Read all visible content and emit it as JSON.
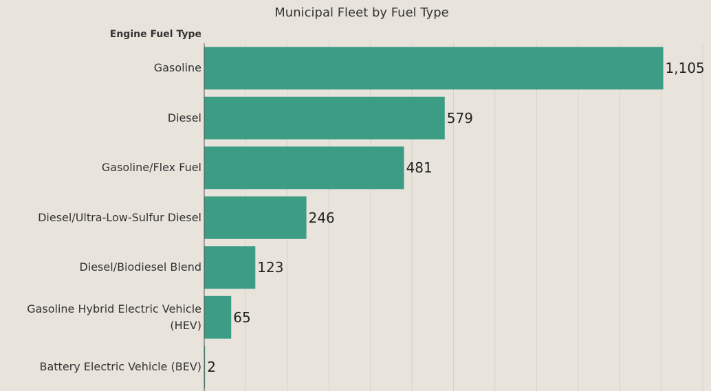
{
  "chart_data": {
    "type": "barh",
    "title": "Municipal Fleet by Fuel Type",
    "y_label": "Engine Fuel Type",
    "categories": [
      "Gasoline",
      "Diesel",
      "Gasoline/Flex Fuel",
      "Diesel/Ultra-Low-Sulfur Diesel",
      "Diesel/Biodiesel Blend",
      "Gasoline Hybrid Electric Vehicle (HEV)",
      "Battery Electric Vehicle (BEV)"
    ],
    "values": [
      1105,
      579,
      481,
      246,
      123,
      65,
      2
    ],
    "value_labels": [
      "1,105",
      "579",
      "481",
      "246",
      "123",
      "65",
      "2"
    ],
    "color": "#3d9c84",
    "xlim": [
      0,
      1220
    ],
    "xticks": [
      0,
      100,
      200,
      300,
      400,
      500,
      600,
      700,
      800,
      900,
      1000,
      1100,
      1200
    ],
    "grid": true
  }
}
